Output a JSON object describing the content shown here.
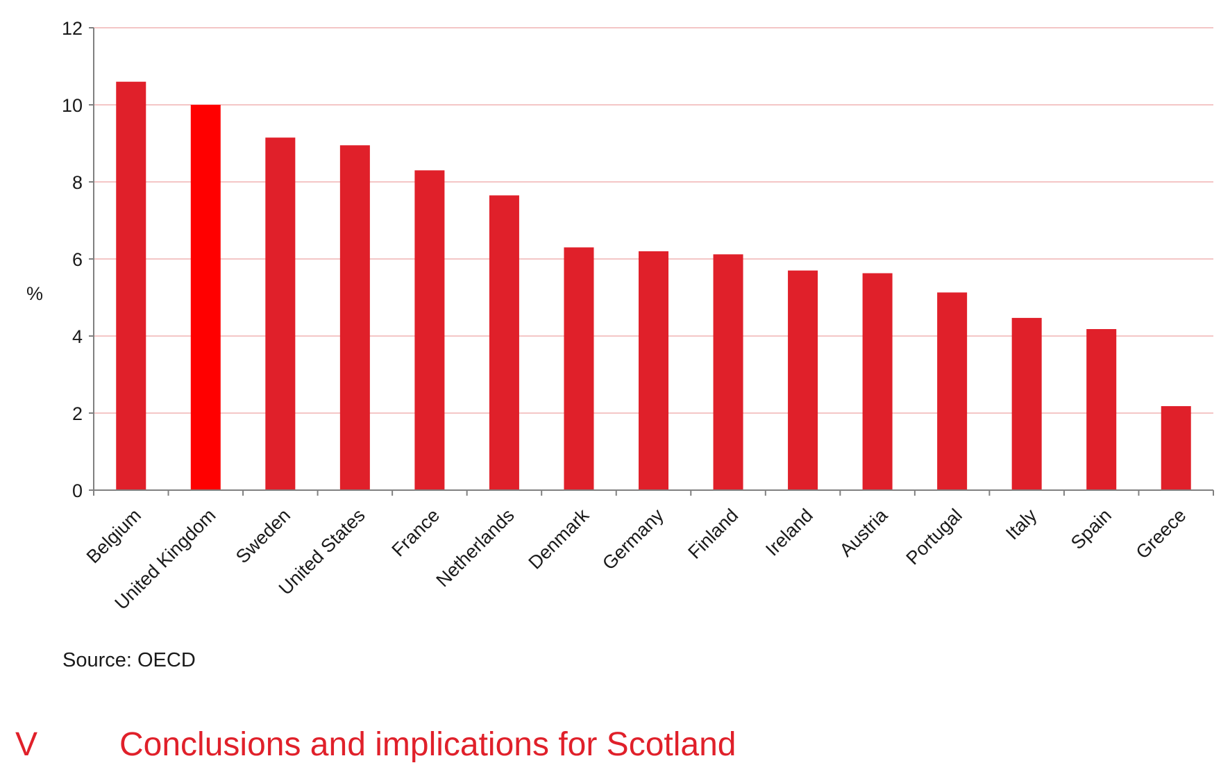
{
  "chart_data": {
    "type": "bar",
    "categories": [
      "Belgium",
      "United Kingdom",
      "Sweden",
      "United States",
      "France",
      "Netherlands",
      "Denmark",
      "Germany",
      "Finland",
      "Ireland",
      "Austria",
      "Portugal",
      "Italy",
      "Spain",
      "Greece"
    ],
    "values": [
      10.6,
      10.0,
      9.15,
      8.95,
      8.3,
      7.65,
      6.3,
      6.2,
      6.12,
      5.7,
      5.63,
      5.13,
      4.47,
      4.18,
      2.18
    ],
    "highlight_index": 1,
    "ylabel": "%",
    "xlabel": "",
    "ylim": [
      0,
      12
    ],
    "yticks": [
      0,
      2,
      4,
      6,
      8,
      10,
      12
    ],
    "grid": true,
    "legend": "none",
    "colors": {
      "bar": "#e0202a",
      "highlight": "#ff0000",
      "grid": "#f4c6c6",
      "axis": "#808080"
    }
  },
  "source_note": "Source: OECD",
  "section": {
    "number": "V",
    "title": "Conclusions and implications for Scotland"
  }
}
